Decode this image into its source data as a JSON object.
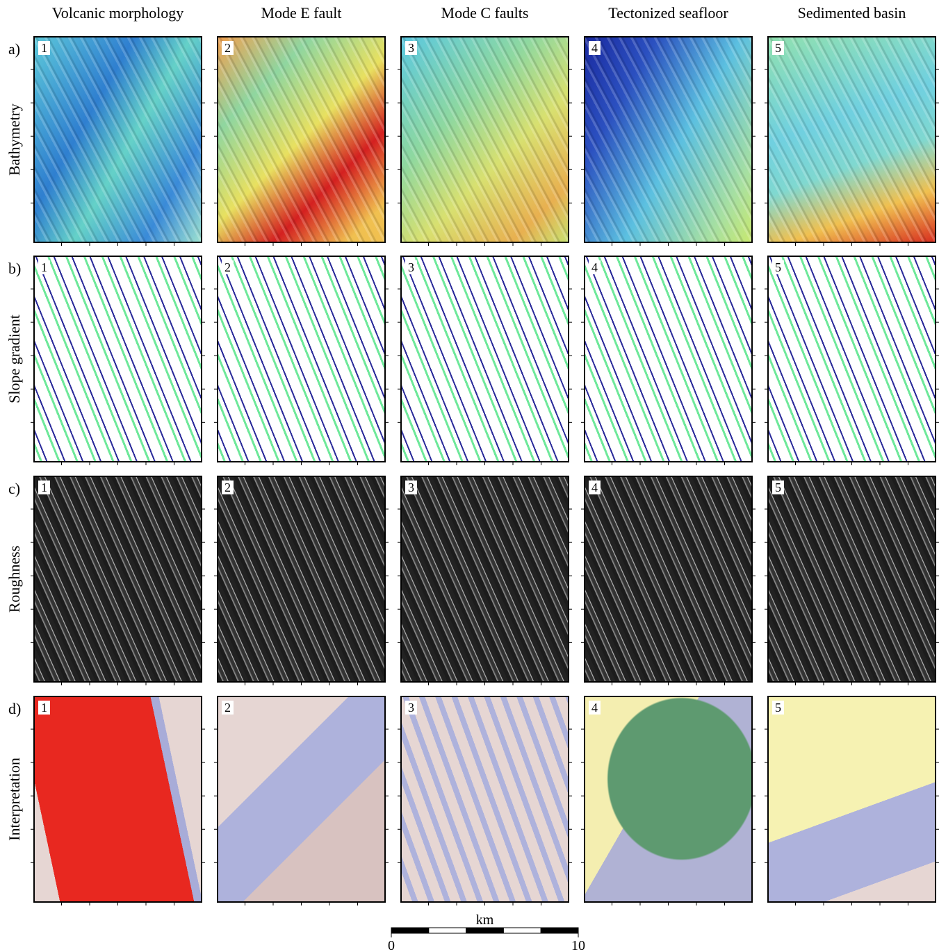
{
  "columns": [
    "Volcanic morphology",
    "Mode E fault",
    "Mode C faults",
    "Tectonized seafloor",
    "Sedimented basin"
  ],
  "rows": [
    {
      "letter": "a)",
      "label": "Bathymetry"
    },
    {
      "letter": "b)",
      "label": "Slope gradient"
    },
    {
      "letter": "c)",
      "label": "Roughness"
    },
    {
      "letter": "d)",
      "label": "Interpretation"
    }
  ],
  "panel_numbers": [
    1,
    2,
    3,
    4,
    5
  ],
  "scale_bar": {
    "unit": "km",
    "ticks": [
      0,
      10
    ]
  }
}
